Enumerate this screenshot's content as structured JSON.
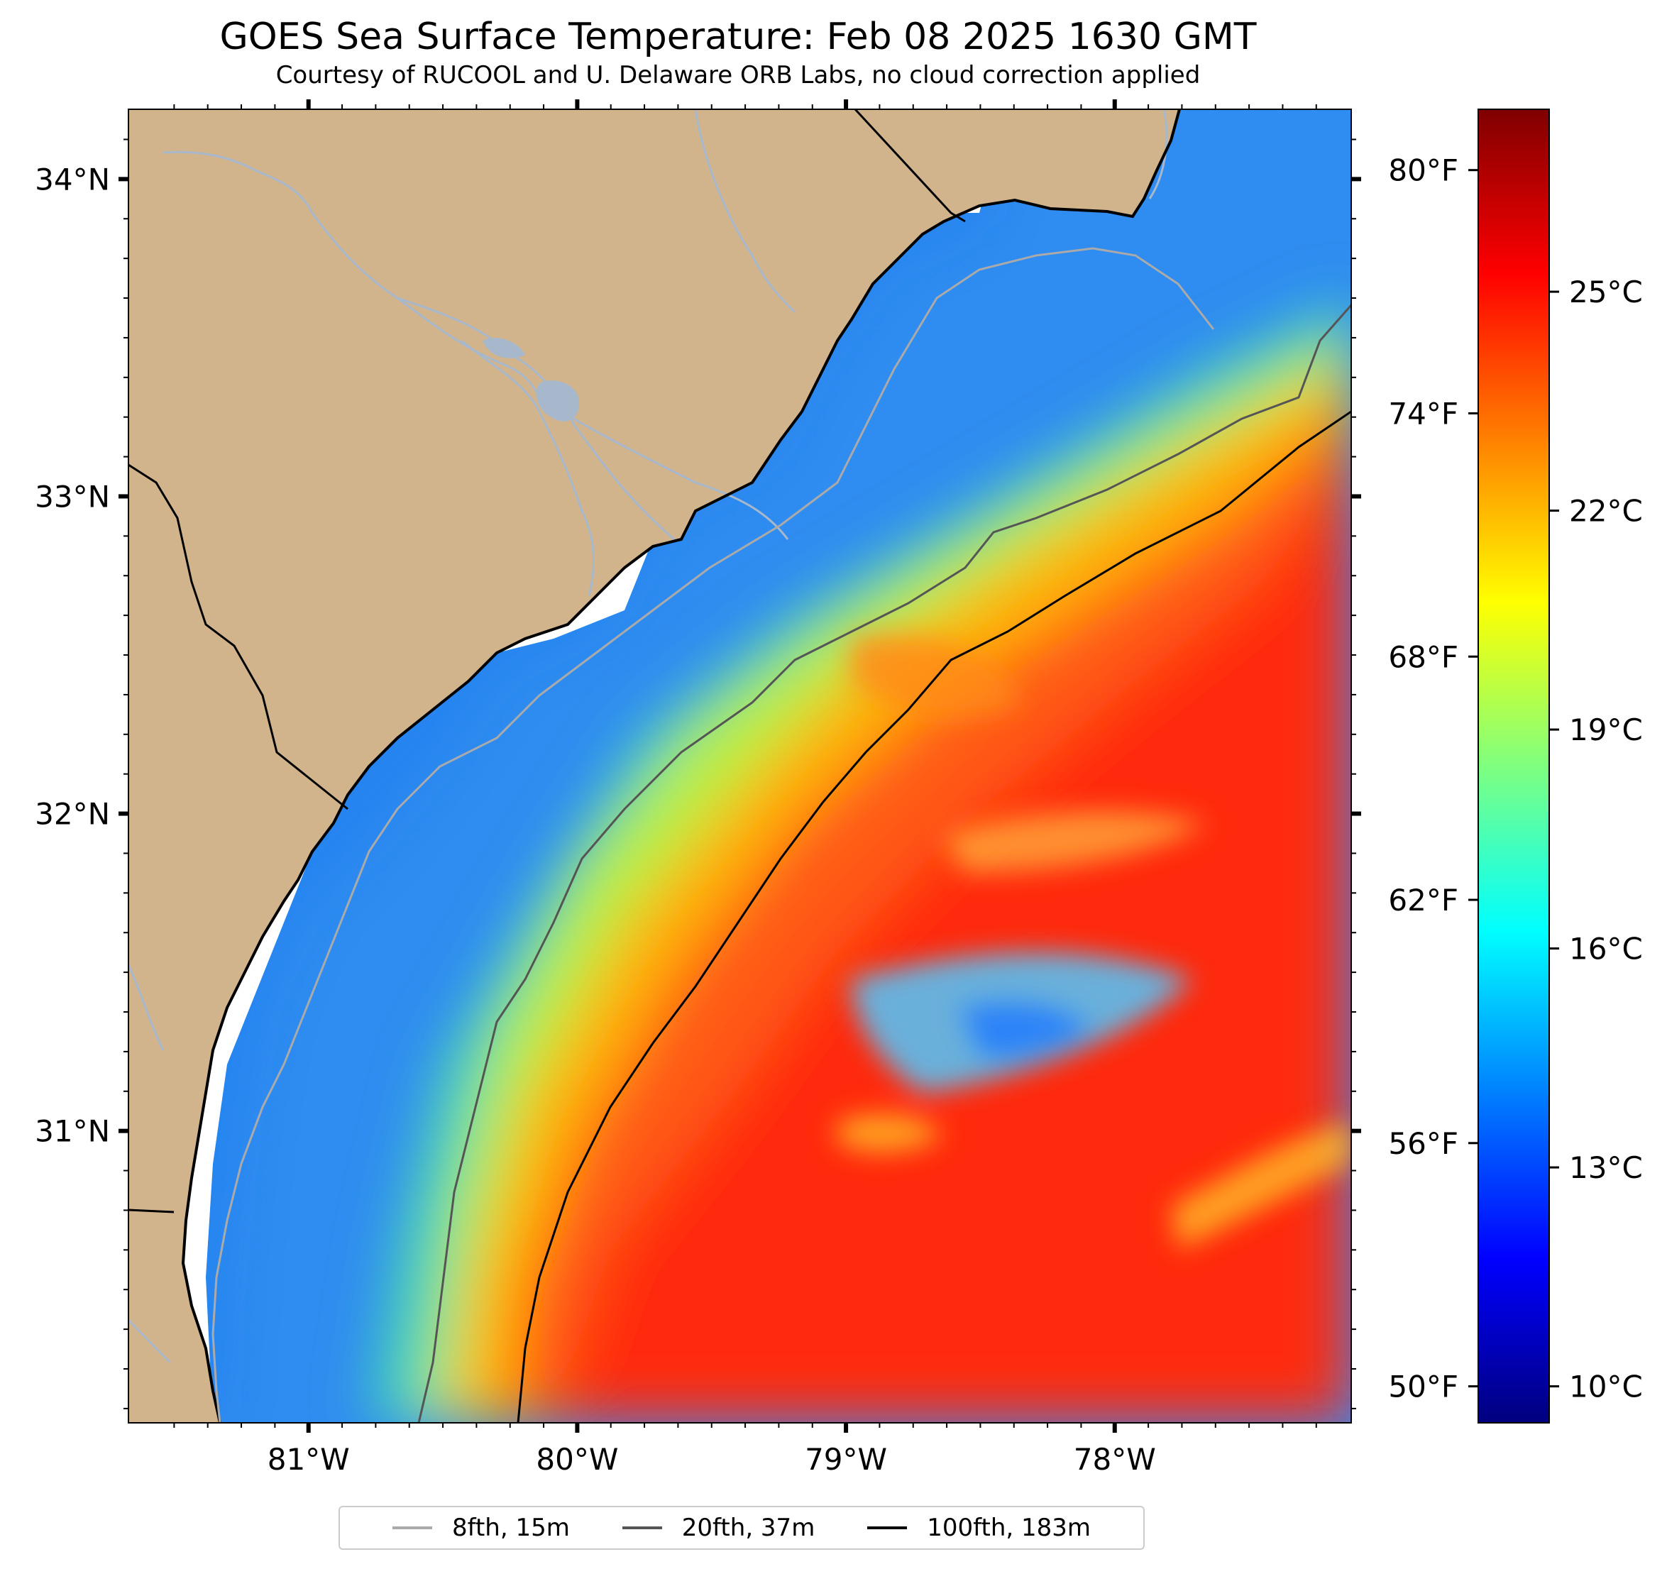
{
  "map": {
    "title": "GOES Sea Surface Temperature: Feb 08 2025 1630 GMT",
    "subtitle": "Courtesy of RUCOOL and U. Delaware ORB Labs, no cloud correction applied",
    "lon_range": [
      -81.67,
      -77.12
    ],
    "lat_range": [
      30.08,
      34.22
    ],
    "lon_ticks": [
      {
        "value": -81,
        "label": "81°W"
      },
      {
        "value": -80,
        "label": "80°W"
      },
      {
        "value": -79,
        "label": "79°W"
      },
      {
        "value": -78,
        "label": "78°W"
      }
    ],
    "lat_ticks": [
      {
        "value": 34,
        "label": "34°N"
      },
      {
        "value": 33,
        "label": "33°N"
      },
      {
        "value": 32,
        "label": "32°N"
      },
      {
        "value": 31,
        "label": "31°N"
      }
    ],
    "colors": {
      "land": "#d2b48c",
      "coast": "#000000",
      "river": "#a8b8cc"
    }
  },
  "colorbar": {
    "celsius_range": [
      9.5,
      27.5
    ],
    "fahrenheit_labels": [
      {
        "value": 80,
        "label": "80°F"
      },
      {
        "value": 74,
        "label": "74°F"
      },
      {
        "value": 68,
        "label": "68°F"
      },
      {
        "value": 62,
        "label": "62°F"
      },
      {
        "value": 56,
        "label": "56°F"
      },
      {
        "value": 50,
        "label": "50°F"
      }
    ],
    "celsius_labels": [
      {
        "value": 25,
        "label": "25°C"
      },
      {
        "value": 22,
        "label": "22°C"
      },
      {
        "value": 19,
        "label": "19°C"
      },
      {
        "value": 16,
        "label": "16°C"
      },
      {
        "value": 13,
        "label": "13°C"
      },
      {
        "value": 10,
        "label": "10°C"
      }
    ],
    "colormap": "jet",
    "stops": [
      "#00007f",
      "#0000ff",
      "#007fff",
      "#00ffff",
      "#7fff7f",
      "#ffff00",
      "#ff7f00",
      "#ff0000",
      "#7f0000"
    ]
  },
  "legend": {
    "items": [
      {
        "label": "8fth, 15m",
        "color": "#aaaaaa"
      },
      {
        "label": "20fth, 37m",
        "color": "#555555"
      },
      {
        "label": "100fth, 183m",
        "color": "#000000"
      }
    ]
  }
}
